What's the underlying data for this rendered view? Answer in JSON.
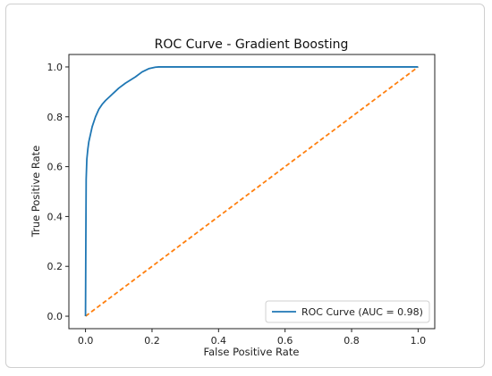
{
  "chart_data": {
    "type": "line",
    "title": "ROC Curve - Gradient Boosting",
    "xlabel": "False Positive Rate",
    "ylabel": "True Positive Rate",
    "xlim": [
      -0.05,
      1.05
    ],
    "ylim": [
      -0.05,
      1.05
    ],
    "xticks": [
      0.0,
      0.2,
      0.4,
      0.6,
      0.8,
      1.0
    ],
    "yticks": [
      0.0,
      0.2,
      0.4,
      0.6,
      0.8,
      1.0
    ],
    "xtick_labels": [
      "0.0",
      "0.2",
      "0.4",
      "0.6",
      "0.8",
      "1.0"
    ],
    "ytick_labels": [
      "0.0",
      "0.2",
      "0.4",
      "0.6",
      "0.8",
      "1.0"
    ],
    "grid": false,
    "legend_position": "lower-right",
    "series": [
      {
        "name": "ROC Curve (AUC = 0.98)",
        "color": "#1f77b4",
        "style": "solid",
        "x": [
          0.0,
          0.001,
          0.002,
          0.004,
          0.007,
          0.01,
          0.015,
          0.02,
          0.03,
          0.04,
          0.05,
          0.06,
          0.08,
          0.1,
          0.12,
          0.15,
          0.17,
          0.19,
          0.21,
          0.22,
          0.3,
          0.5,
          0.7,
          1.0
        ],
        "y": [
          0.0,
          0.3,
          0.55,
          0.63,
          0.67,
          0.7,
          0.73,
          0.76,
          0.8,
          0.83,
          0.85,
          0.865,
          0.89,
          0.915,
          0.935,
          0.96,
          0.98,
          0.993,
          0.999,
          1.0,
          1.0,
          1.0,
          1.0,
          1.0
        ]
      },
      {
        "name": "",
        "color": "#ff7f0e",
        "style": "dashed",
        "x": [
          0.0,
          1.0
        ],
        "y": [
          0.0,
          1.0
        ]
      }
    ],
    "legend": [
      {
        "label": "ROC Curve (AUC = 0.98)",
        "color": "#1f77b4"
      }
    ]
  }
}
